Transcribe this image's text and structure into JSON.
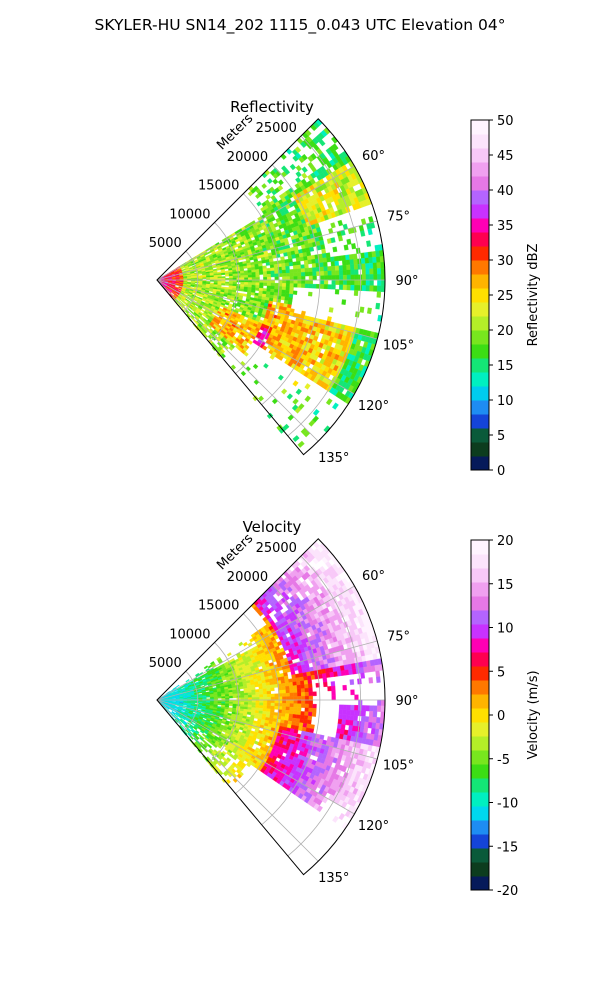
{
  "figure": {
    "suptitle": "SKYLER-HU  SN14_202  1115_0.043 UTC Elevation 04°"
  },
  "chart_data": [
    {
      "type": "polar-sector",
      "title": "Reflectivity",
      "radial_label": "Meters",
      "radial_range": [
        0,
        28000
      ],
      "radial_ticks": [
        5000,
        10000,
        15000,
        20000,
        25000
      ],
      "azimuth_range_deg": [
        45,
        140
      ],
      "azimuth_ticks": [
        60,
        75,
        90,
        105,
        120,
        135
      ],
      "azimuth_tick_labels": [
        "60°",
        "75°",
        "90°",
        "105°",
        "120°",
        "135°"
      ],
      "grid": true,
      "colorbar": {
        "label": "Reflectivity dBZ",
        "range": [
          0,
          50
        ],
        "ticks": [
          0,
          5,
          10,
          15,
          20,
          25,
          30,
          35,
          40,
          45,
          50
        ],
        "tick_labels": [
          "0",
          "5",
          "10",
          "15",
          "20",
          "25",
          "30",
          "35",
          "40",
          "45",
          "50"
        ]
      }
    },
    {
      "type": "polar-sector",
      "title": "Velocity",
      "radial_label": "Meters",
      "radial_range": [
        0,
        28000
      ],
      "radial_ticks": [
        5000,
        10000,
        15000,
        20000,
        25000
      ],
      "azimuth_range_deg": [
        45,
        140
      ],
      "azimuth_ticks": [
        60,
        75,
        90,
        105,
        120,
        135
      ],
      "azimuth_tick_labels": [
        "60°",
        "75°",
        "90°",
        "105°",
        "120°",
        "135°"
      ],
      "grid": true,
      "colorbar": {
        "label": "Velocity (m/s)",
        "range": [
          -20,
          20
        ],
        "ticks": [
          -20,
          -15,
          -10,
          -5,
          0,
          5,
          10,
          15,
          20
        ],
        "tick_labels": [
          "-20",
          "-15",
          "-10",
          "-5",
          "0",
          "5",
          "10",
          "15",
          "20"
        ]
      }
    }
  ],
  "colors": {
    "reflectivity_scale": [
      "#061a5a",
      "#0c3c1e",
      "#0a5a3a",
      "#1444d8",
      "#1e8cf2",
      "#00ccee",
      "#00f0c0",
      "#14e676",
      "#3cde14",
      "#78e61e",
      "#b4ee28",
      "#e6f02a",
      "#ffe000",
      "#ffb400",
      "#ff7800",
      "#ff2a00",
      "#ff0050",
      "#ff00b4",
      "#c832ff",
      "#b464ff",
      "#e678e6",
      "#f0a0f0",
      "#f8c8f8",
      "#fce4fc",
      "#fff4ff"
    ],
    "velocity_scale": [
      "#061a5a",
      "#0c3c1e",
      "#0a5a3a",
      "#1444d8",
      "#1e8cf2",
      "#00d8ee",
      "#00f0c0",
      "#14e676",
      "#3cde14",
      "#78e61e",
      "#b4ee28",
      "#e6f02a",
      "#ffe000",
      "#ffb400",
      "#ff7800",
      "#ff2a00",
      "#ff0050",
      "#ff00b4",
      "#c832ff",
      "#b464ff",
      "#e678e6",
      "#f0a0f0",
      "#f8c8f8",
      "#fce4fc",
      "#fff4ff"
    ]
  }
}
